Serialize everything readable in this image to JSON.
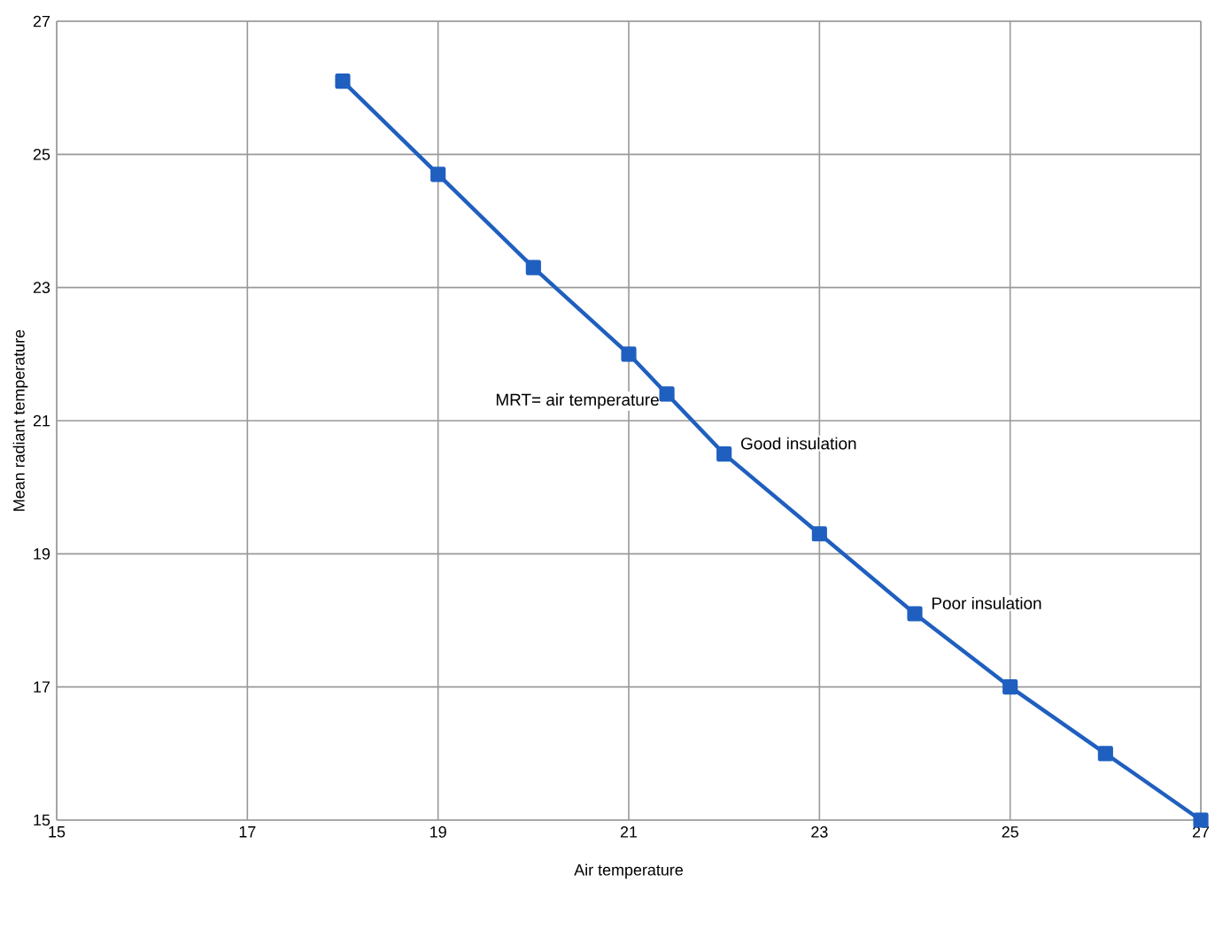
{
  "chart_data": {
    "type": "line",
    "xlabel": "Air temperature",
    "ylabel": "Mean radiant temperature",
    "x": [
      18,
      19,
      20,
      21,
      21.4,
      22,
      23,
      24,
      25,
      26,
      27
    ],
    "series": [
      {
        "color": "#1f5fbf",
        "values": [
          26.1,
          24.7,
          23.3,
          22.0,
          21.4,
          20.5,
          19.3,
          18.1,
          17.0,
          16.0,
          15.0
        ]
      }
    ],
    "xlim": [
      15,
      27
    ],
    "ylim": [
      15,
      27
    ],
    "xticks": [
      15,
      17,
      19,
      21,
      23,
      25,
      27
    ],
    "yticks": [
      15,
      17,
      19,
      21,
      23,
      25,
      27
    ],
    "grid": true,
    "marker": "square",
    "line_style": "solid",
    "annotations": [
      {
        "text": "MRT= air temperature",
        "x": 21.4,
        "y": 21.4
      },
      {
        "text": "Good insulation",
        "x": 22,
        "y": 20.5
      },
      {
        "text": "Poor insulation",
        "x": 24,
        "y": 18.1
      }
    ]
  }
}
